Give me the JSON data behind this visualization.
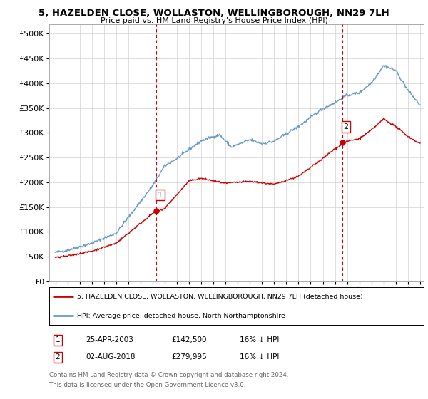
{
  "title": "5, HAZELDEN CLOSE, WOLLASTON, WELLINGBOROUGH, NN29 7LH",
  "subtitle": "Price paid vs. HM Land Registry's House Price Index (HPI)",
  "legend_line1": "5, HAZELDEN CLOSE, WOLLASTON, WELLINGBOROUGH, NN29 7LH (detached house)",
  "legend_line2": "HPI: Average price, detached house, North Northamptonshire",
  "transaction1_label": "1",
  "transaction1_date": "25-APR-2003",
  "transaction1_price": "£142,500",
  "transaction1_hpi": "16% ↓ HPI",
  "transaction1_year": 2003.32,
  "transaction1_value": 142500,
  "transaction2_label": "2",
  "transaction2_date": "02-AUG-2018",
  "transaction2_price": "£279,995",
  "transaction2_hpi": "16% ↓ HPI",
  "transaction2_year": 2018.6,
  "transaction2_value": 279995,
  "hpi_color": "#6699cc",
  "price_color": "#cc0000",
  "vline_color": "#cc0000",
  "footnote1": "Contains HM Land Registry data © Crown copyright and database right 2024.",
  "footnote2": "This data is licensed under the Open Government Licence v3.0.",
  "ylim": [
    0,
    520000
  ],
  "yticks": [
    0,
    50000,
    100000,
    150000,
    200000,
    250000,
    300000,
    350000,
    400000,
    450000,
    500000
  ],
  "xlim_start": 1994.5,
  "xlim_end": 2025.3,
  "hpi_seed": 42,
  "hpi_noise_scale": 1500,
  "price_noise_scale": 900
}
